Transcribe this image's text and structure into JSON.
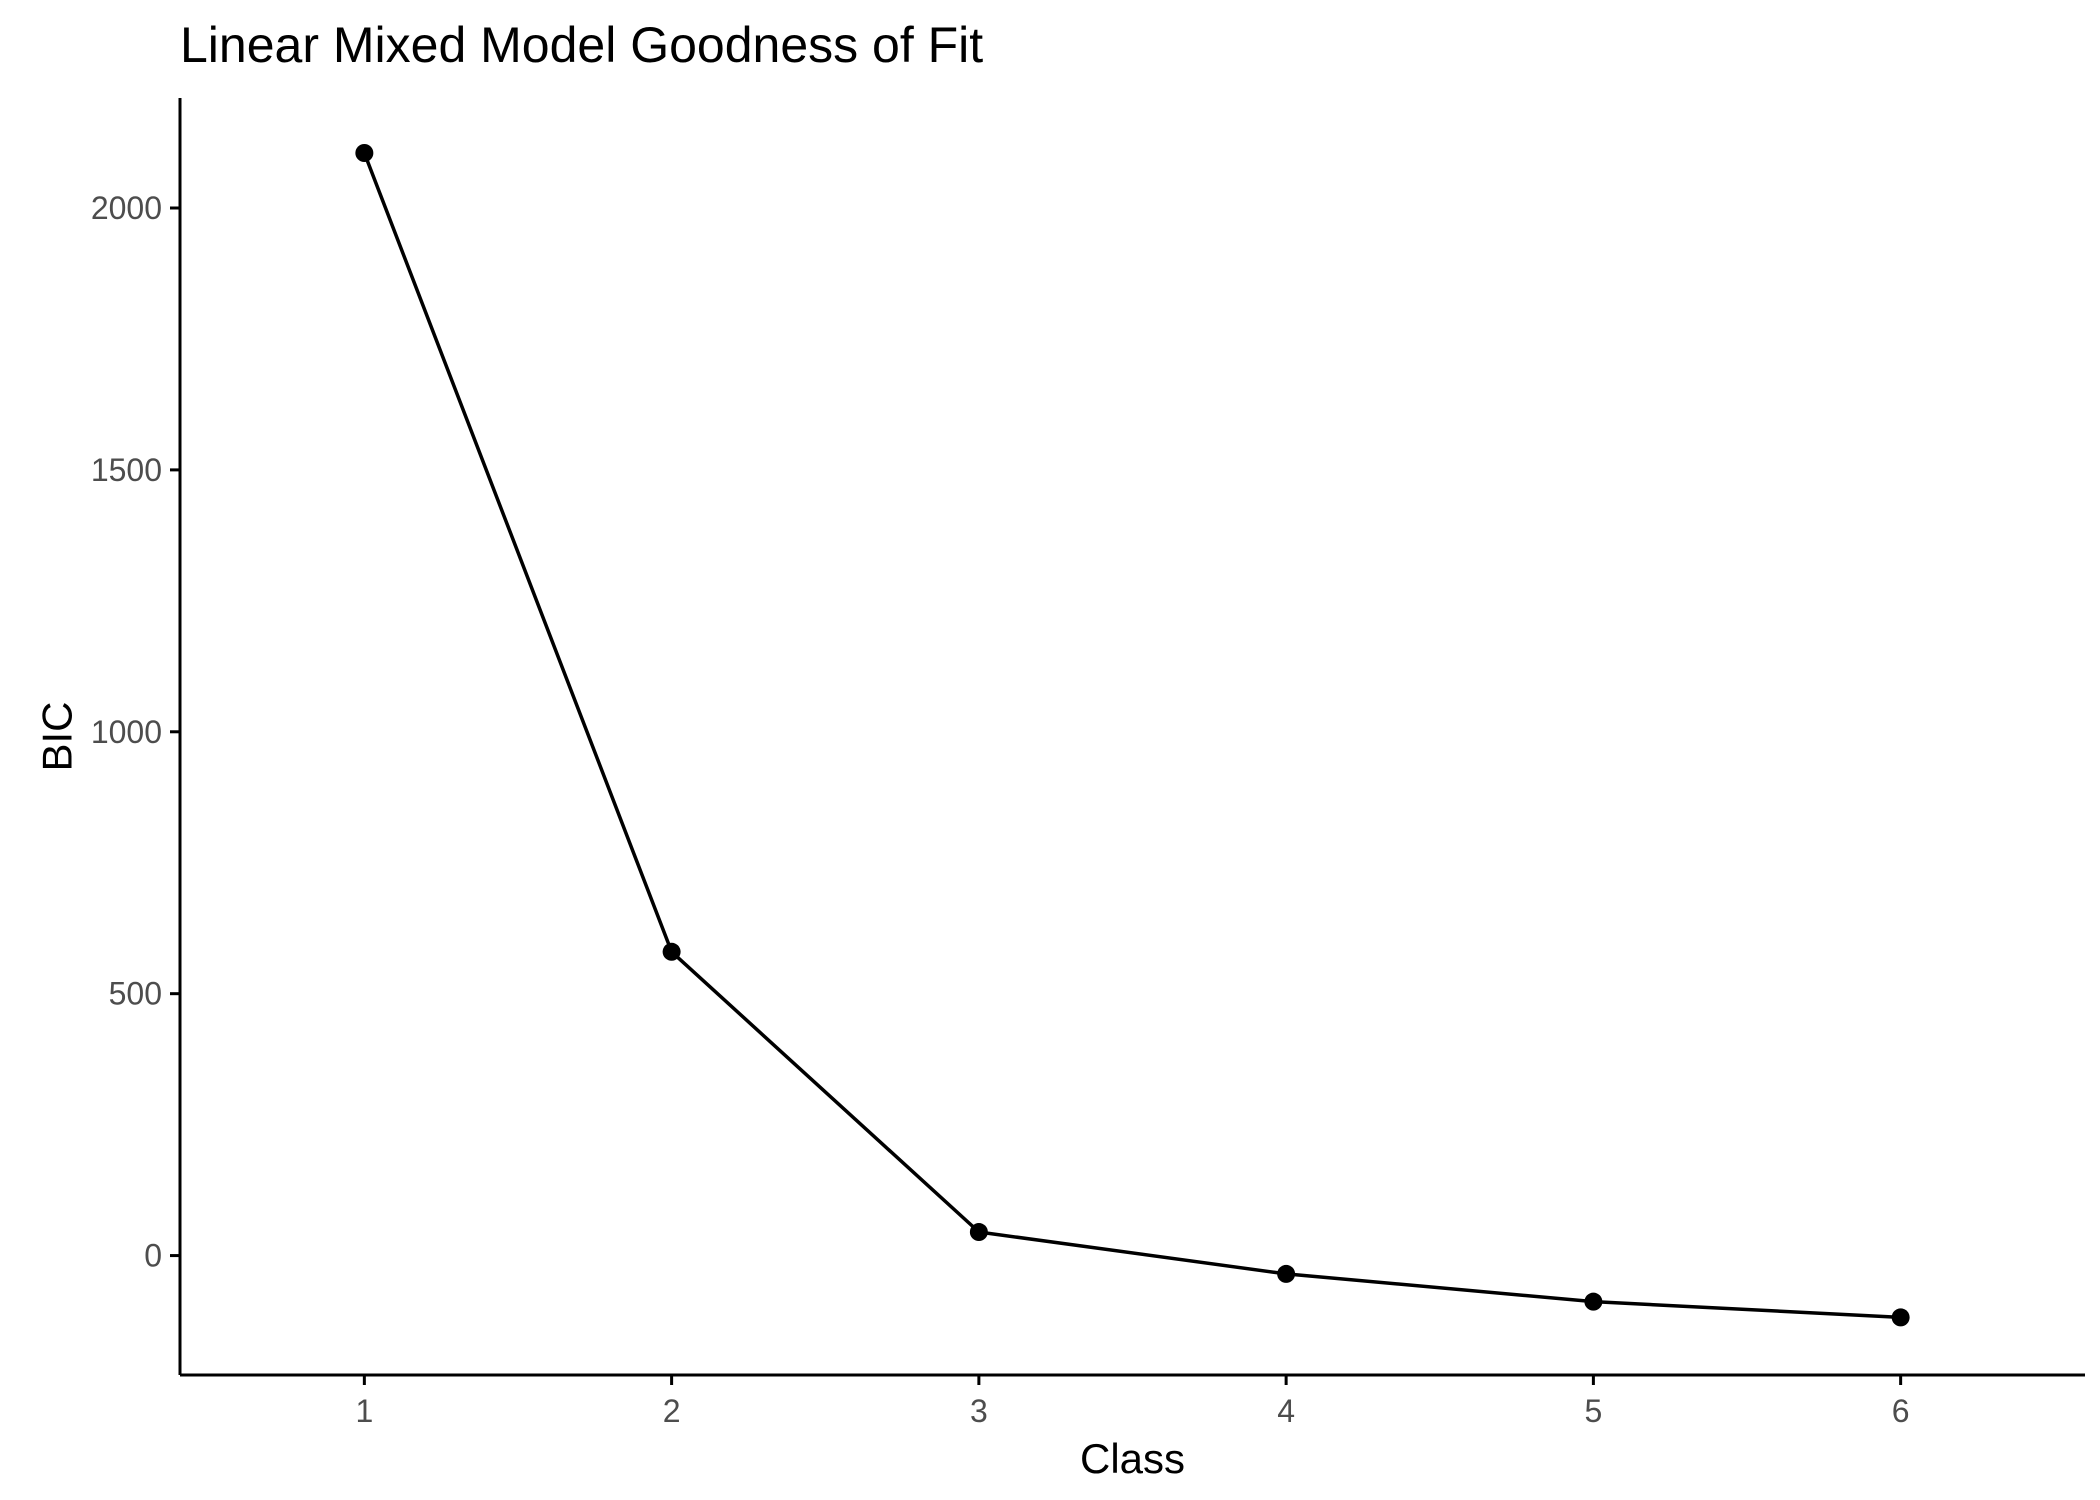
{
  "chart_data": {
    "type": "line",
    "title": "Linear Mixed Model Goodness of Fit",
    "xlabel": "Class",
    "ylabel": "BIC",
    "x": [
      1,
      2,
      3,
      4,
      5,
      6
    ],
    "series": [
      {
        "values": [
          2105,
          580,
          45,
          -35,
          -88,
          -118
        ]
      }
    ],
    "x_ticks": [
      1,
      2,
      3,
      4,
      5,
      6
    ],
    "y_ticks": [
      0,
      500,
      1000,
      1500,
      2000
    ],
    "xlim": [
      0.4,
      6.6
    ],
    "ylim": [
      -228,
      2210
    ],
    "grid": false,
    "legend": "none",
    "colors": {
      "line": "#000000",
      "points": "#000000",
      "axis": "#000000",
      "tick_label": "#4d4d4d"
    }
  }
}
